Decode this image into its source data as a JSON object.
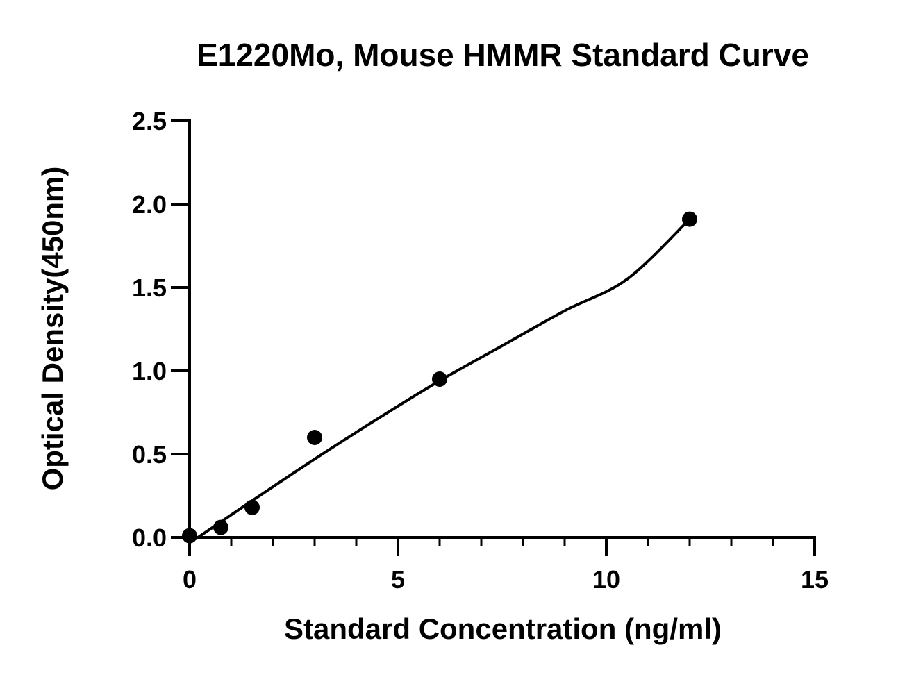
{
  "chart_data": {
    "type": "scatter",
    "title": "E1220Mo, Mouse HMMR Standard Curve",
    "xlabel": "Standard Concentration (ng/ml)",
    "ylabel": "Optical Density(450nm)",
    "xlim": [
      0,
      15
    ],
    "ylim": [
      0,
      2.5
    ],
    "x_ticks": [
      0,
      5,
      10,
      15
    ],
    "x_tick_labels": [
      "0",
      "5",
      "10",
      "15"
    ],
    "y_ticks": [
      0,
      0.5,
      1.0,
      1.5,
      2.0,
      2.5
    ],
    "y_tick_labels": [
      "0.0",
      "0.5",
      "1.0",
      "1.5",
      "2.0",
      "2.5"
    ],
    "x_minor_step": 1,
    "grid": false,
    "series": [
      {
        "kind": "points",
        "x": [
          0,
          0.75,
          1.5,
          3,
          6,
          12
        ],
        "y": [
          0.01,
          0.06,
          0.18,
          0.6,
          0.95,
          1.91
        ]
      },
      {
        "kind": "fit-curve",
        "x": [
          0.2,
          1.5,
          3,
          4.5,
          6,
          7.5,
          9,
          10.5,
          12
        ],
        "y": [
          0.0,
          0.22,
          0.47,
          0.71,
          0.94,
          1.15,
          1.36,
          1.55,
          1.91
        ]
      }
    ]
  }
}
